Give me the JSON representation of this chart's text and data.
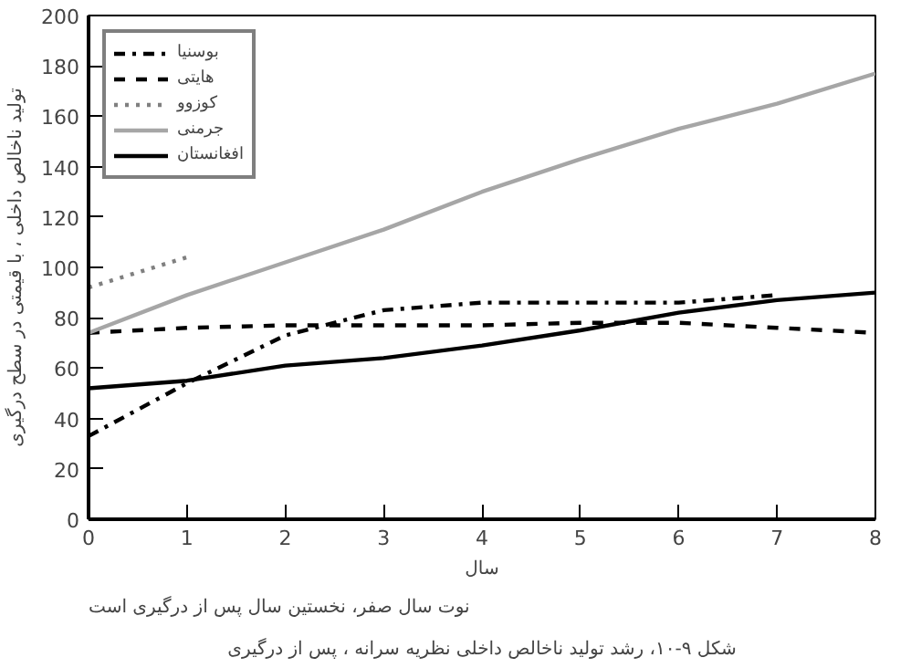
{
  "chart_data": {
    "type": "line",
    "xlabel": "سال",
    "ylabel": "تولید ناخالص داخلی ، با قیمتی در سطح درگیری",
    "annotations": [
      "نوت سال صفر، نخستین سال پس از درگیری است",
      "شکل ۹-۱۰، رشد تولید ناخالص داخلی نظریه سرانه ، پس از درگیری"
    ],
    "x": [
      0,
      1,
      2,
      3,
      4,
      5,
      6,
      7,
      8
    ],
    "series": [
      {
        "name": "بوسنیا",
        "color": "#000000",
        "line_style": "dashdot",
        "values": [
          33,
          54,
          73,
          83,
          86,
          86,
          86,
          89,
          null
        ]
      },
      {
        "name": "هایتی",
        "color": "#000000",
        "line_style": "dashed",
        "values": [
          74,
          76,
          77,
          77,
          77,
          78,
          78,
          76,
          74
        ]
      },
      {
        "name": "کوزوو",
        "color": "#808080",
        "line_style": "dotted",
        "values": [
          92,
          104,
          null,
          null,
          null,
          null,
          null,
          null,
          null
        ]
      },
      {
        "name": "جرمنی",
        "color": "#a6a6a6",
        "line_style": "solid",
        "values": [
          74,
          89,
          102,
          115,
          130,
          143,
          155,
          165,
          177
        ]
      },
      {
        "name": "افغانستان",
        "color": "#000000",
        "line_style": "solid",
        "values": [
          52,
          55,
          61,
          64,
          69,
          75,
          82,
          87,
          90
        ]
      }
    ],
    "xlim": [
      0,
      8
    ],
    "ylim": [
      0,
      200
    ],
    "xticks": [
      0,
      1,
      2,
      3,
      4,
      5,
      6,
      7,
      8
    ],
    "yticks": [
      0,
      20,
      40,
      60,
      80,
      100,
      120,
      140,
      160,
      180,
      200
    ],
    "grid": false,
    "legend": "top left",
    "marker": "none"
  }
}
